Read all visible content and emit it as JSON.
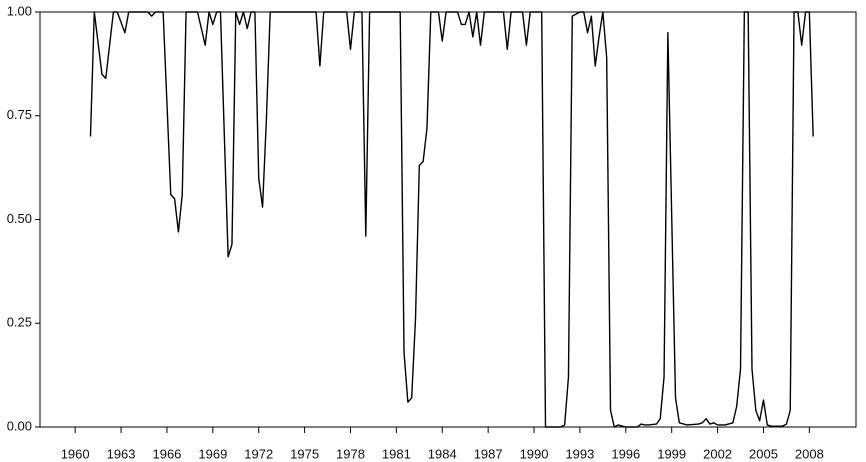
{
  "chart_data": {
    "type": "line",
    "color": "#000000",
    "x": [
      1961,
      1961.25,
      1961.75,
      1962,
      1962.5,
      1962.75,
      1963.25,
      1963.5,
      1964.75,
      1965,
      1965.25,
      1965.75,
      1966.25,
      1966.5,
      1966.75,
      1967,
      1967.25,
      1968,
      1968.5,
      1968.75,
      1969,
      1969.25,
      1969.5,
      1970,
      1970.25,
      1970.5,
      1970.75,
      1971,
      1971.25,
      1971.5,
      1971.75,
      1972,
      1972.25,
      1972.5,
      1972.75,
      1975.75,
      1976,
      1976.25,
      1977.75,
      1978,
      1978.25,
      1978.75,
      1979,
      1979.25,
      1981.25,
      1981.5,
      1981.75,
      1982,
      1982.25,
      1982.5,
      1982.75,
      1983,
      1983.25,
      1983.75,
      1984,
      1984.25,
      1985,
      1985.25,
      1985.5,
      1985.75,
      1986,
      1986.25,
      1986.5,
      1986.75,
      1988,
      1988.25,
      1988.5,
      1989.25,
      1989.5,
      1989.75,
      1990.5,
      1990.75,
      1991.75,
      1992,
      1992.25,
      1992.5,
      1993,
      1993.25,
      1993.5,
      1993.75,
      1994,
      1994.25,
      1994.5,
      1994.75,
      1995,
      1995.25,
      1995.5,
      1996,
      1996.5,
      1996.75,
      1997,
      1997.25,
      1997.5,
      1998,
      1998.25,
      1998.5,
      1998.75,
      1999,
      1999.25,
      1999.5,
      2000,
      2000.75,
      2001,
      2001.25,
      2001.5,
      2001.75,
      2002,
      2002.5,
      2003,
      2003.25,
      2003.5,
      2003.75,
      2004,
      2004.25,
      2004.5,
      2004.75,
      2005,
      2005.25,
      2005.5,
      2006.25,
      2006.5,
      2006.75,
      2007,
      2007.25,
      2007.5,
      2007.75,
      2008,
      2008.25
    ],
    "values": [
      0.7,
      1,
      0.85,
      0.84,
      1,
      1,
      0.95,
      1,
      1,
      0.99,
      1,
      1,
      0.56,
      0.55,
      0.47,
      0.56,
      1,
      1,
      0.92,
      1,
      0.97,
      1,
      1,
      0.41,
      0.44,
      1,
      0.97,
      1,
      0.96,
      1,
      1,
      0.6,
      0.53,
      0.74,
      1,
      1,
      0.87,
      1,
      1,
      0.91,
      1,
      1,
      0.46,
      1,
      1,
      0.18,
      0.06,
      0.07,
      0.26,
      0.63,
      0.64,
      0.72,
      1,
      1,
      0.93,
      1,
      1,
      0.97,
      0.97,
      1,
      0.94,
      1,
      0.92,
      1,
      1,
      0.91,
      1,
      1,
      0.92,
      1,
      1,
      0,
      0,
      0.005,
      0.12,
      0.99,
      1,
      1,
      0.95,
      0.99,
      0.87,
      0.94,
      1,
      0.89,
      0.04,
      0,
      0.005,
      0,
      0,
      0,
      0.007,
      0.005,
      0.005,
      0.007,
      0.02,
      0.12,
      0.95,
      0.51,
      0.07,
      0.01,
      0.005,
      0.007,
      0.01,
      0.02,
      0.007,
      0.01,
      0.005,
      0.005,
      0.01,
      0.05,
      0.14,
      1,
      1,
      0.14,
      0.04,
      0.015,
      0.065,
      0.005,
      0.002,
      0.002,
      0.007,
      0.04,
      1,
      1,
      0.92,
      1,
      1,
      0.7
    ],
    "xlim": [
      1957.7,
      2011.05
    ],
    "xticks": [
      1960,
      1963,
      1966,
      1969,
      1972,
      1975,
      1978,
      1981,
      1984,
      1987,
      1990,
      1993,
      1996,
      1999,
      2002,
      2005,
      2008
    ],
    "ylim": [
      0,
      1
    ],
    "yticks": [
      {
        "value": 0,
        "label": "0.00"
      },
      {
        "value": 0.25,
        "label": "0.25"
      },
      {
        "value": 0.5,
        "label": "0.50"
      },
      {
        "value": 0.75,
        "label": "0.75"
      },
      {
        "value": 1,
        "label": "1.00"
      }
    ]
  }
}
